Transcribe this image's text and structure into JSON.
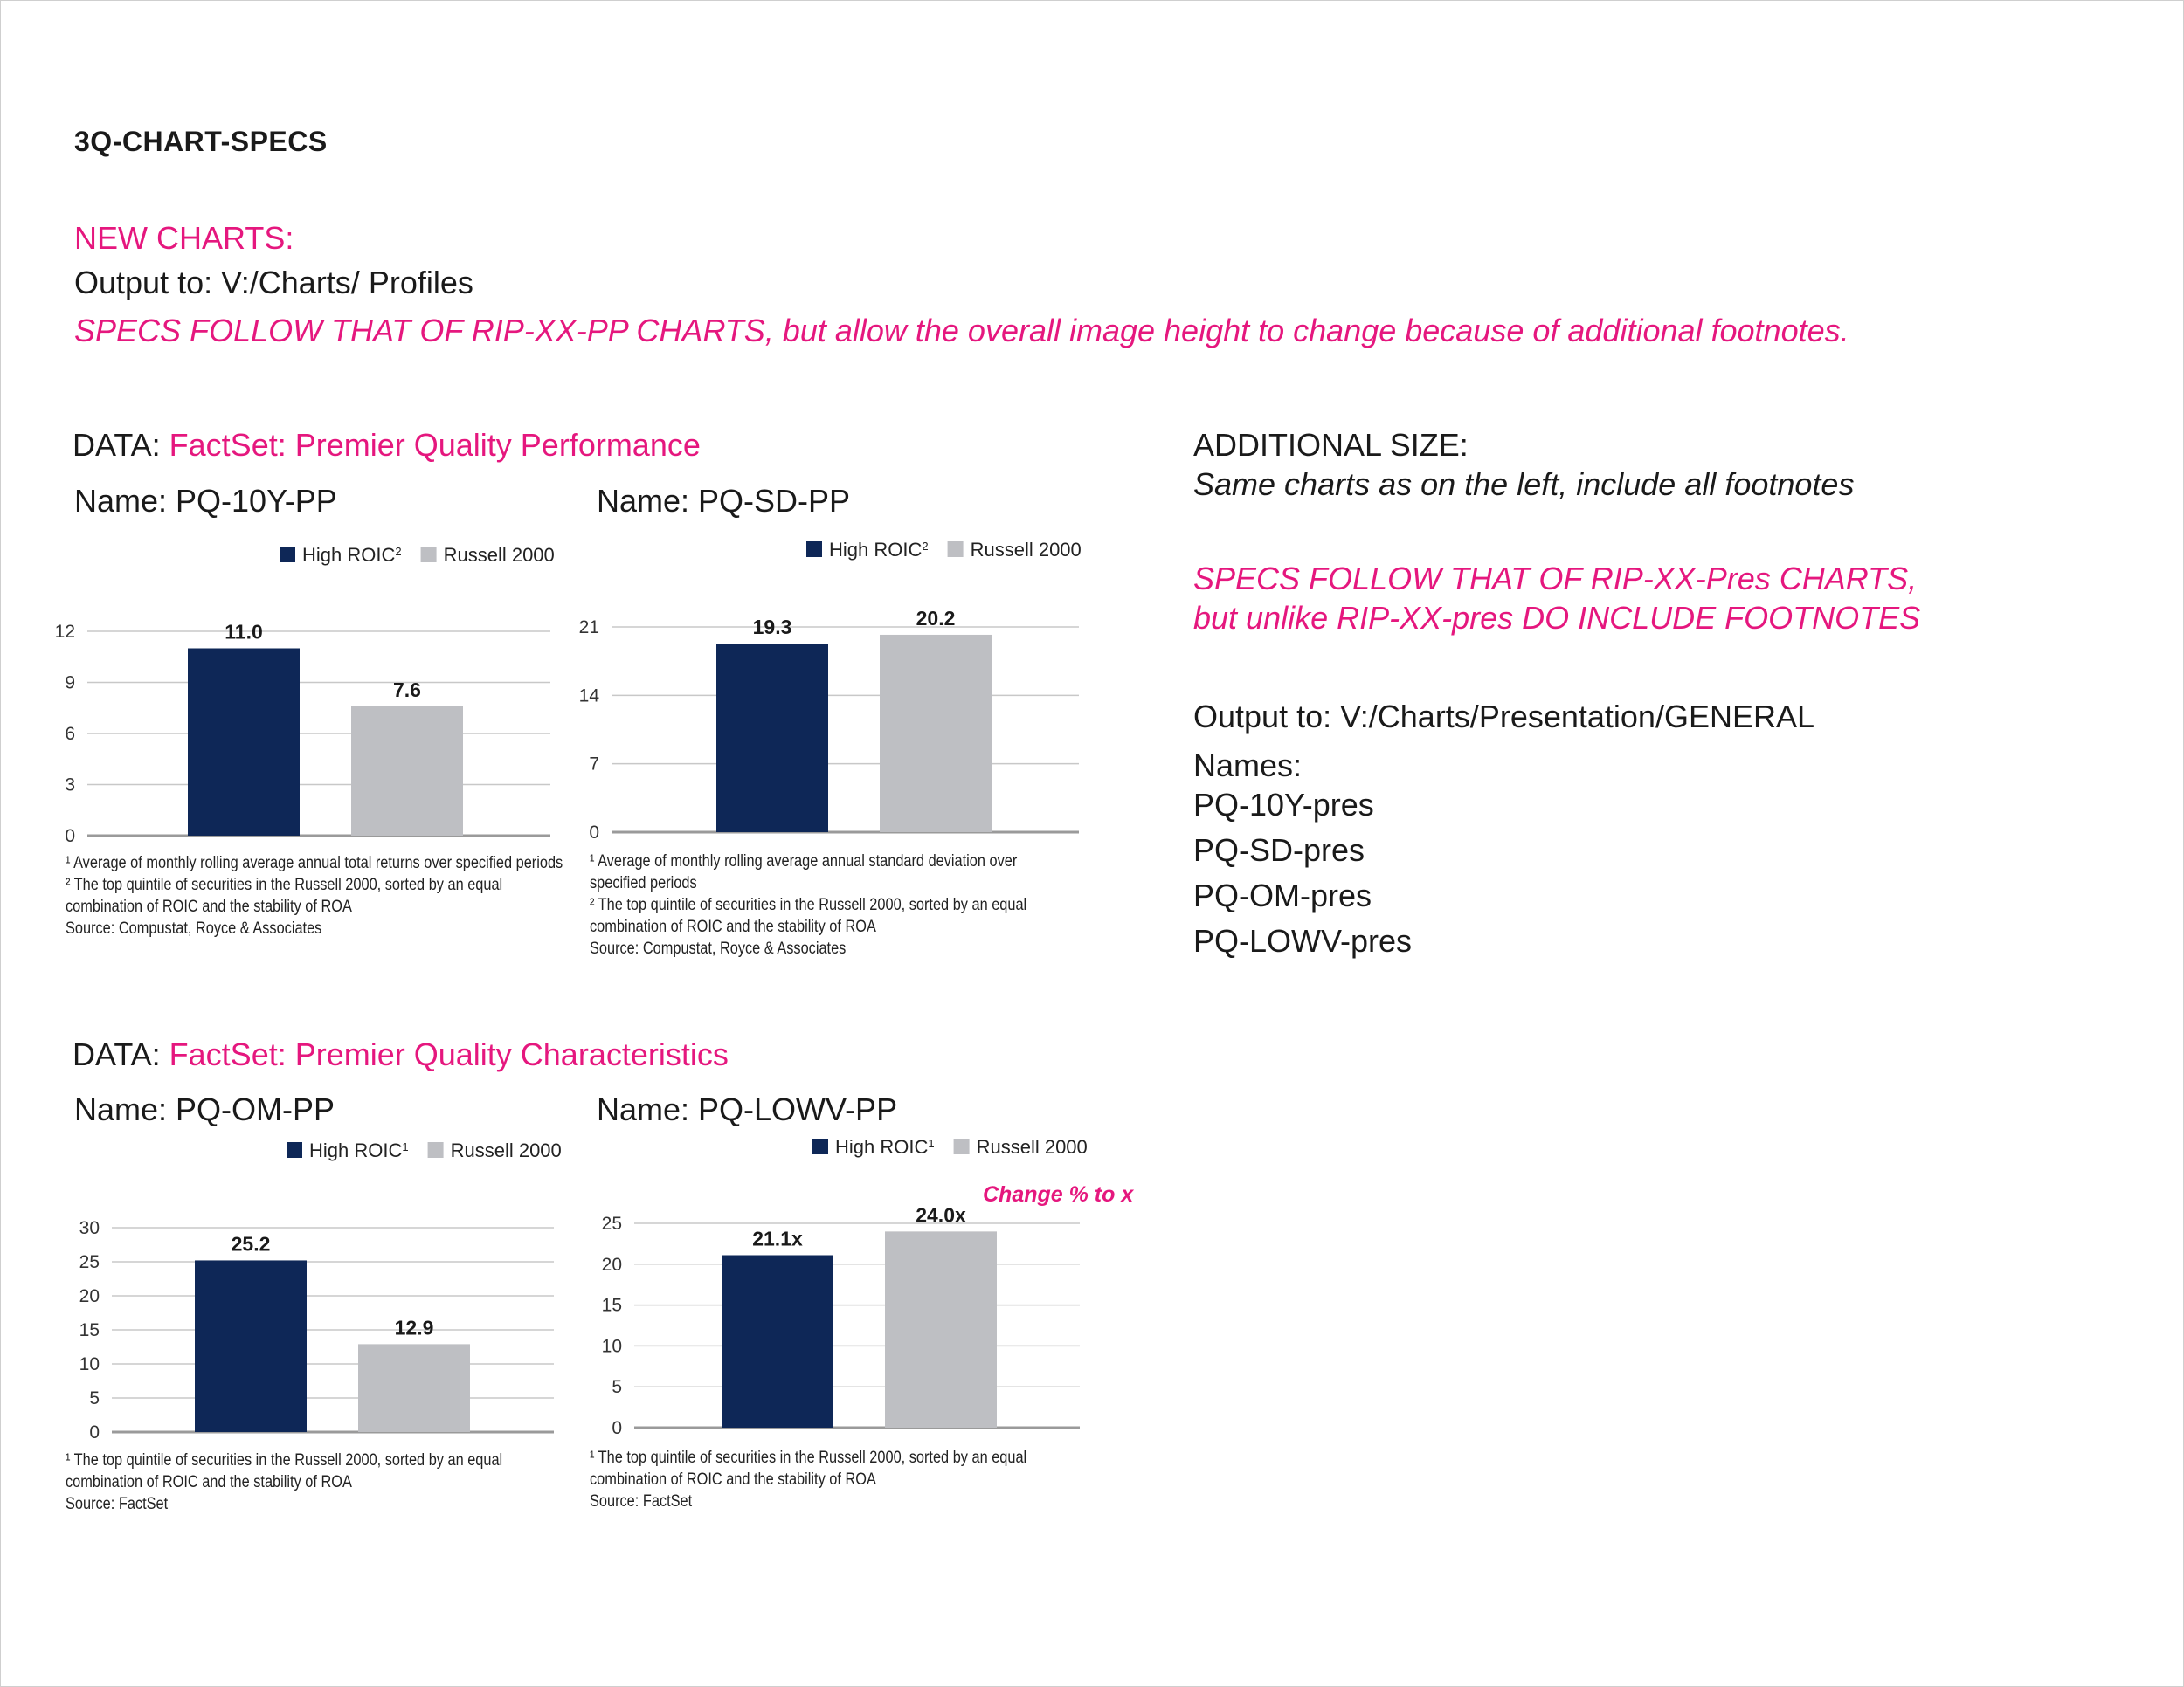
{
  "doc": {
    "title": "3Q-CHART-SPECS",
    "new_charts_label": "NEW CHARTS:",
    "output_line": "Output to: V:/Charts/ Profiles",
    "specs_line": "SPECS FOLLOW THAT OF RIP-XX-PP CHARTS, but allow the overall  image height to change because of additional footnotes."
  },
  "section1": {
    "data_prefix": "DATA: ",
    "data_source": "FactSet: Premier Quality Performance"
  },
  "section2": {
    "data_prefix": "DATA: ",
    "data_source": "FactSet: Premier Quality Characteristics"
  },
  "right": {
    "additional_size": "ADDITIONAL SIZE:",
    "same_charts": "Same charts as on the left, include all footnotes",
    "specs_line1": "SPECS FOLLOW THAT OF RIP-XX-Pres CHARTS,",
    "specs_line2": "but unlike RIP-XX-pres DO INCLUDE FOOTNOTES",
    "output_to": "Output to: V:/Charts/Presentation/GENERAL",
    "names_label": "Names:",
    "names": [
      "PQ-10Y-pres",
      "PQ-SD-pres",
      "PQ-OM-pres",
      "PQ-LOWV-pres"
    ]
  },
  "colors": {
    "accent": "#e5177e",
    "series1": "#0e2757",
    "series2": "#bebfc3",
    "grid": "#c8c8c8"
  },
  "charts": [
    {
      "name": "Name: PQ-10Y-PP",
      "legend": [
        {
          "label": "High ROIC",
          "sup": "2"
        },
        {
          "label": "Russell 2000",
          "sup": ""
        }
      ],
      "footnotes": [
        "¹ Average of monthly rolling average annual total returns over specified periods",
        "² The top quintile of securities in the Russell 2000, sorted by an equal",
        "  combination of ROIC and the stability of ROA",
        "Source: Compustat, Royce & Associates"
      ],
      "annotation": ""
    },
    {
      "name": "Name: PQ-SD-PP",
      "legend": [
        {
          "label": "High ROIC",
          "sup": "2"
        },
        {
          "label": "Russell 2000",
          "sup": ""
        }
      ],
      "footnotes": [
        "¹ Average of monthly rolling average annual standard deviation over",
        "  specified periods",
        "² The top quintile of securities in the Russell 2000, sorted by an equal",
        "  combination of ROIC and the stability of ROA",
        "Source: Compustat, Royce & Associates"
      ],
      "annotation": ""
    },
    {
      "name": "Name: PQ-OM-PP",
      "legend": [
        {
          "label": "High ROIC",
          "sup": "1"
        },
        {
          "label": "Russell 2000",
          "sup": ""
        }
      ],
      "footnotes": [
        "¹ The top quintile of securities in the Russell 2000, sorted by an equal",
        "  combination of ROIC and the stability of ROA",
        "Source: FactSet"
      ],
      "annotation": ""
    },
    {
      "name": "Name: PQ-LOWV-PP",
      "legend": [
        {
          "label": "High ROIC",
          "sup": "1"
        },
        {
          "label": "Russell 2000",
          "sup": ""
        }
      ],
      "footnotes": [
        "¹ The top quintile of securities in the Russell 2000, sorted by an equal",
        "  combination of ROIC and the stability of ROA",
        "Source: FactSet"
      ],
      "annotation": "Change % to x"
    }
  ],
  "chart_data": [
    {
      "type": "bar",
      "title": "PQ-10Y-PP",
      "categories": [
        "High ROIC",
        "Russell 2000"
      ],
      "values": [
        11.0,
        7.6
      ],
      "value_labels": [
        "11.0",
        "7.6"
      ],
      "yticks": [
        "0",
        "3",
        "6",
        "9",
        "12"
      ],
      "ylim": [
        0,
        12
      ],
      "tick_values": [
        0,
        3,
        6,
        9,
        12
      ],
      "xlabel": "",
      "ylabel": ""
    },
    {
      "type": "bar",
      "title": "PQ-SD-PP",
      "categories": [
        "High ROIC",
        "Russell 2000"
      ],
      "values": [
        19.3,
        20.2
      ],
      "value_labels": [
        "19.3",
        "20.2"
      ],
      "yticks": [
        "0",
        "7",
        "14",
        "21"
      ],
      "ylim": [
        0,
        21
      ],
      "tick_values": [
        0,
        7,
        14,
        21
      ],
      "xlabel": "",
      "ylabel": ""
    },
    {
      "type": "bar",
      "title": "PQ-OM-PP",
      "categories": [
        "High ROIC",
        "Russell 2000"
      ],
      "values": [
        25.2,
        12.9
      ],
      "value_labels": [
        "25.2",
        "12.9"
      ],
      "yticks": [
        "0",
        "5",
        "10",
        "15",
        "20",
        "25",
        "30"
      ],
      "ylim": [
        0,
        30
      ],
      "tick_values": [
        0,
        5,
        10,
        15,
        20,
        25,
        30
      ],
      "xlabel": "",
      "ylabel": ""
    },
    {
      "type": "bar",
      "title": "PQ-LOWV-PP",
      "categories": [
        "High ROIC",
        "Russell 2000"
      ],
      "values": [
        21.1,
        24.0
      ],
      "value_labels": [
        "21.1x",
        "24.0x"
      ],
      "yticks": [
        "0",
        "5",
        "10",
        "15",
        "20",
        "25"
      ],
      "ylim": [
        0,
        25
      ],
      "tick_values": [
        0,
        5,
        10,
        15,
        20,
        25
      ],
      "xlabel": "",
      "ylabel": ""
    }
  ]
}
